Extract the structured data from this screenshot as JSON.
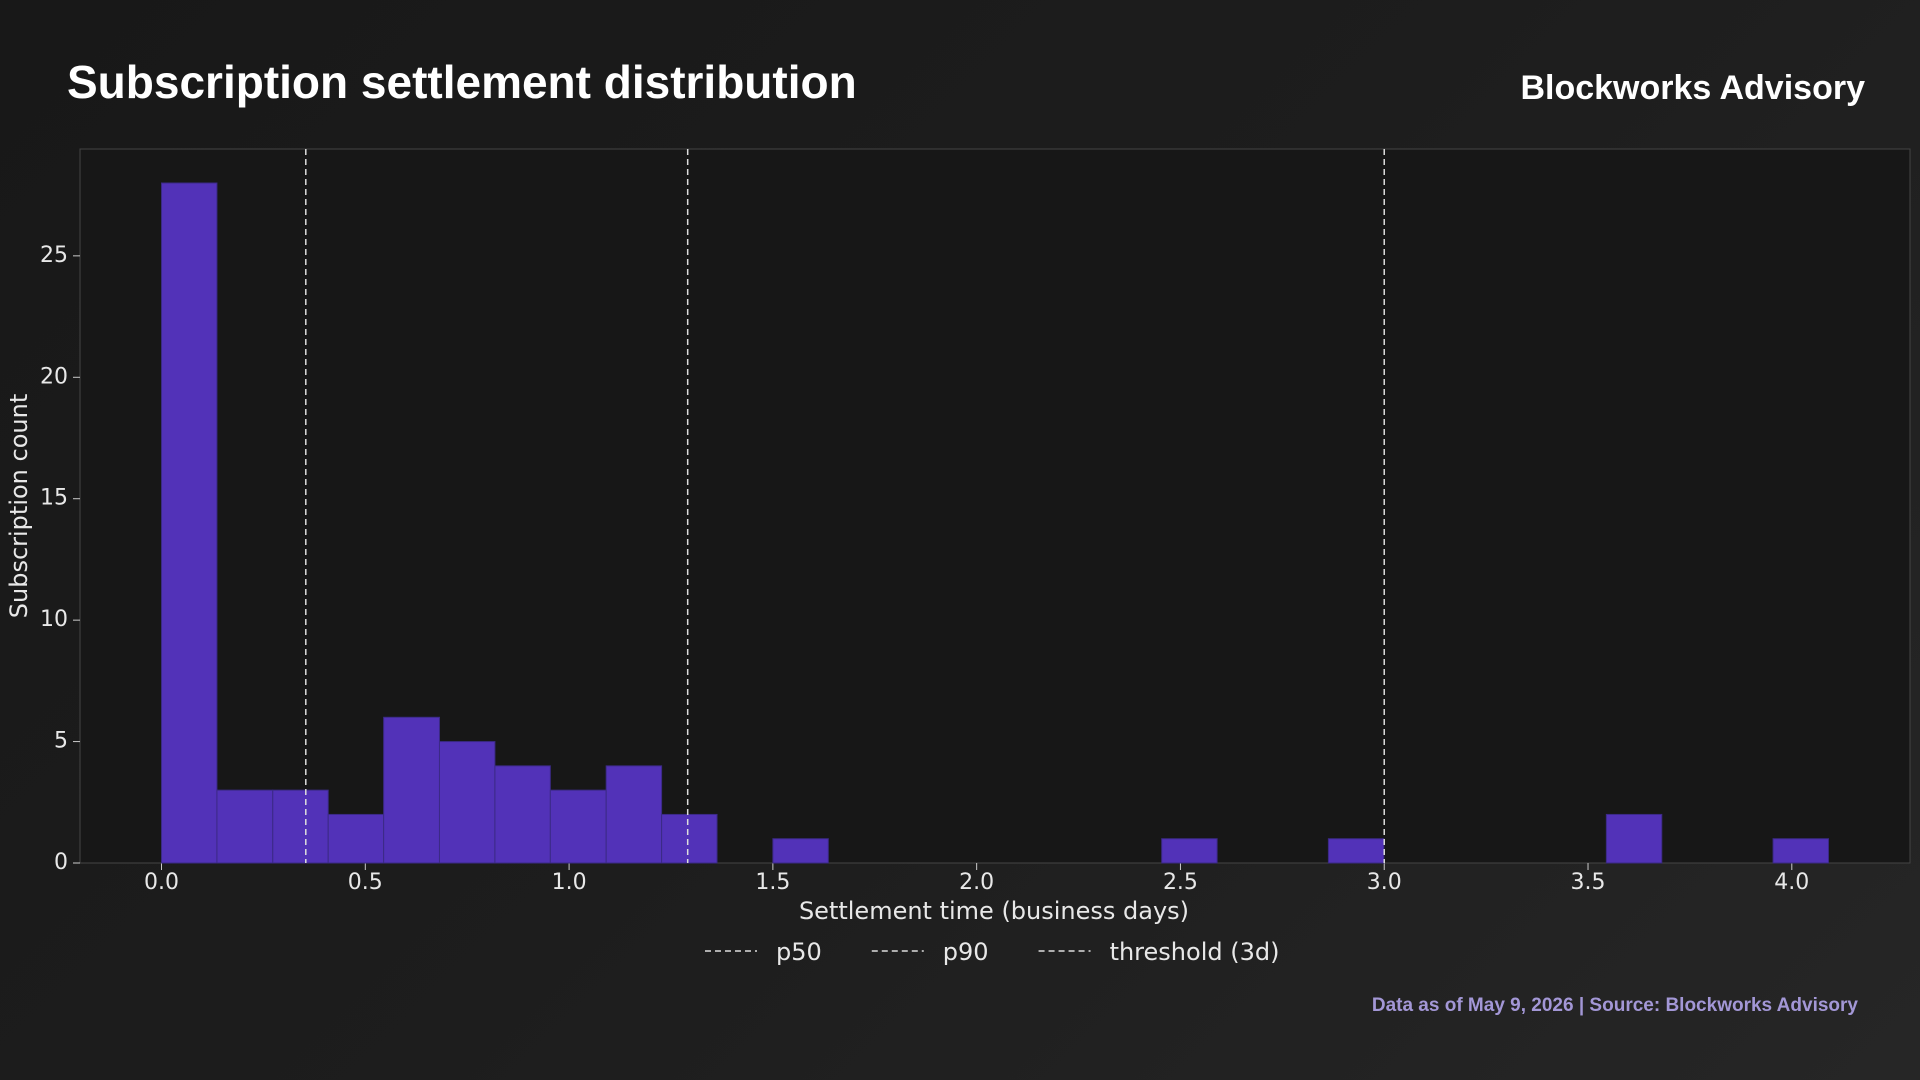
{
  "chart_data": {
    "type": "histogram",
    "title": "Subscription settlement distribution",
    "brand": "Blockworks Advisory",
    "footer": "Data as of May 9, 2026 | Source: Blockworks Advisory",
    "xlabel": "Settlement time (business days)",
    "ylabel": "Subscription count",
    "color": "#5232b8",
    "bins": [
      0,
      0.136,
      0.273,
      0.409,
      0.545,
      0.682,
      0.818,
      0.954,
      1.091,
      1.227,
      1.363,
      1.5,
      1.636,
      1.772,
      1.909,
      2.045,
      2.181,
      2.318,
      2.454,
      2.59,
      2.727,
      2.863,
      2.999,
      3.136,
      3.272,
      3.408,
      3.545,
      3.681,
      3.817,
      3.954,
      4.09
    ],
    "values": [
      28,
      3,
      3,
      2,
      6,
      5,
      4,
      3,
      4,
      2,
      0,
      1,
      0,
      0,
      0,
      0,
      0,
      0,
      1,
      0,
      0,
      1,
      0,
      0,
      0,
      0,
      2,
      0,
      0,
      1
    ],
    "reference_lines": [
      {
        "name": "p50",
        "value": 0.354
      },
      {
        "name": "p90",
        "value": 1.291
      },
      {
        "name": "threshold (3d)",
        "value": 3.0
      }
    ],
    "xlim": [
      -0.2,
      4.29
    ],
    "ylim": [
      0,
      29.4
    ],
    "xticks": [
      {
        "value": 0,
        "label": "0.0"
      },
      0.5,
      {
        "value": 1,
        "label": "1.0"
      },
      1.5,
      {
        "value": 2,
        "label": "2.0"
      },
      2.5,
      {
        "value": 3,
        "label": "3.0"
      },
      3.5,
      {
        "value": 4,
        "label": "4.0"
      }
    ],
    "yticks": [
      0,
      5,
      10,
      15,
      20,
      25
    ],
    "legend": "bottom"
  }
}
